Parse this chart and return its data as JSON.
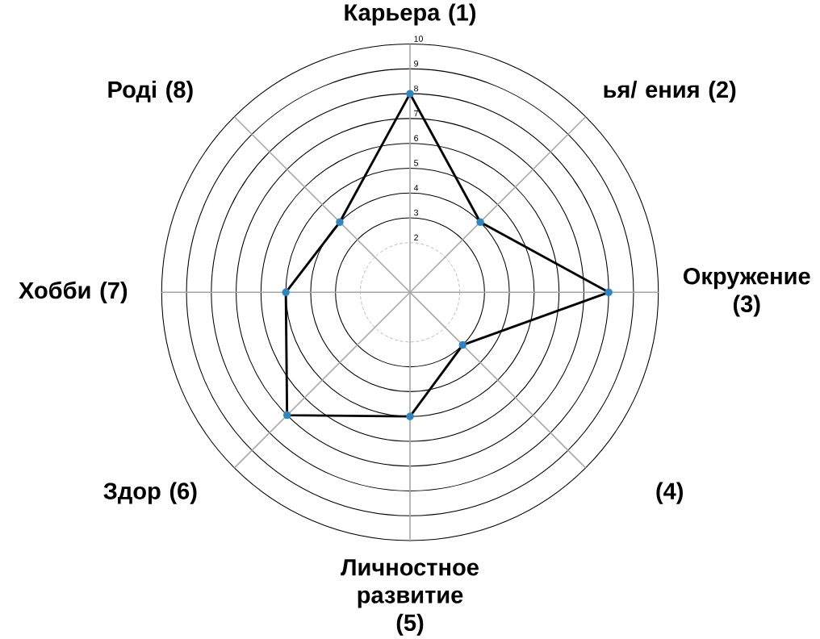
{
  "chart_data": {
    "type": "radar",
    "categories": [
      "Карьера (1)",
      "ья/ ения (2)",
      "Окружение (3)",
      "(4)",
      "Личностное развитие (5)",
      "Здор (6)",
      "Хобби (7)",
      "Роді (8)"
    ],
    "series": [
      {
        "color": "#000000",
        "values": [
          8,
          4,
          8,
          3,
          5,
          7,
          5,
          4
        ]
      }
    ],
    "ylim": [
      0,
      10
    ],
    "yticks": [
      2,
      3,
      4,
      5,
      6,
      7,
      8,
      9,
      10
    ],
    "grid": true,
    "marker": "circle",
    "line_style": "solid"
  }
}
